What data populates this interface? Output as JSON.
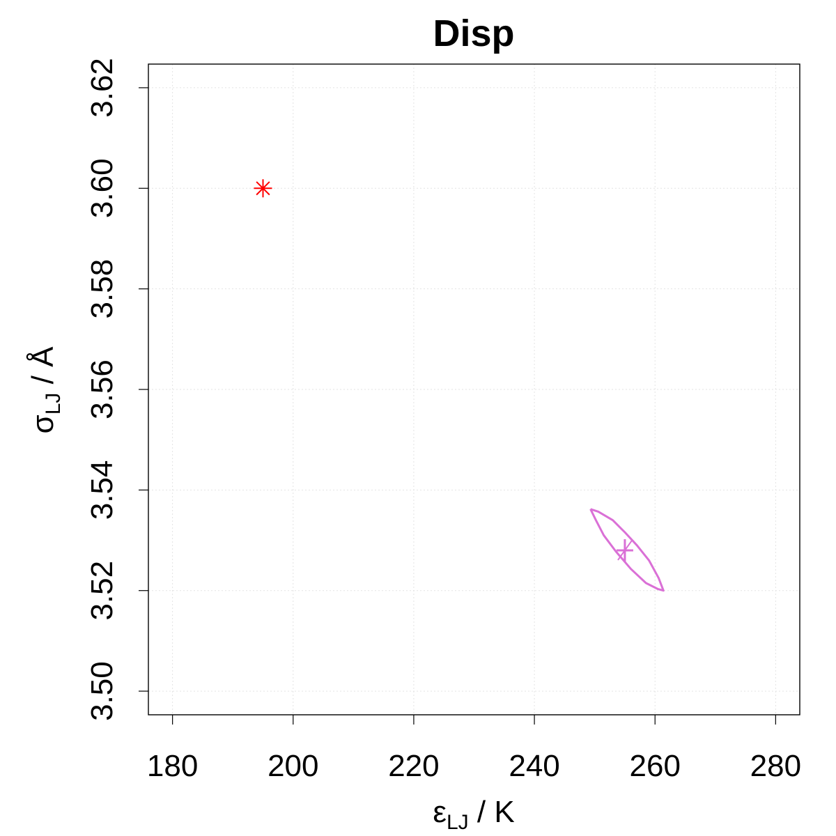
{
  "chart_data": {
    "type": "scatter",
    "title": "Disp",
    "xlabel": {
      "main": "ε",
      "sub": "LJ",
      "unit": " / K"
    },
    "ylabel": {
      "main": "σ",
      "sub": "LJ",
      "unit": " / Å"
    },
    "xlim": [
      176,
      284
    ],
    "ylim": [
      3.4953,
      3.6247
    ],
    "xticks": [
      180,
      200,
      220,
      240,
      260,
      280
    ],
    "xtick_labels": [
      "180",
      "200",
      "220",
      "240",
      "260",
      "280"
    ],
    "yticks": [
      3.5,
      3.52,
      3.54,
      3.56,
      3.58,
      3.6,
      3.62
    ],
    "ytick_labels": [
      "3.50",
      "3.52",
      "3.54",
      "3.56",
      "3.58",
      "3.60",
      "3.62"
    ],
    "grid": true,
    "points": [
      {
        "x": 195,
        "y": 3.6,
        "marker": "asterisk",
        "color": "#ff0000"
      },
      {
        "x": 255,
        "y": 3.528,
        "marker": "cross",
        "color": "#da70d6"
      }
    ],
    "contour": {
      "color": "#da70d6",
      "x": [
        249.3,
        250.6,
        253.0,
        255.0,
        257.0,
        259.0,
        260.6,
        261.4,
        260.5,
        258.5,
        256.0,
        253.5,
        251.5,
        250.2,
        249.3
      ],
      "y": [
        3.5362,
        3.5357,
        3.534,
        3.5316,
        3.529,
        3.526,
        3.5225,
        3.52,
        3.5203,
        3.5215,
        3.5243,
        3.5278,
        3.531,
        3.534,
        3.5362
      ]
    }
  }
}
